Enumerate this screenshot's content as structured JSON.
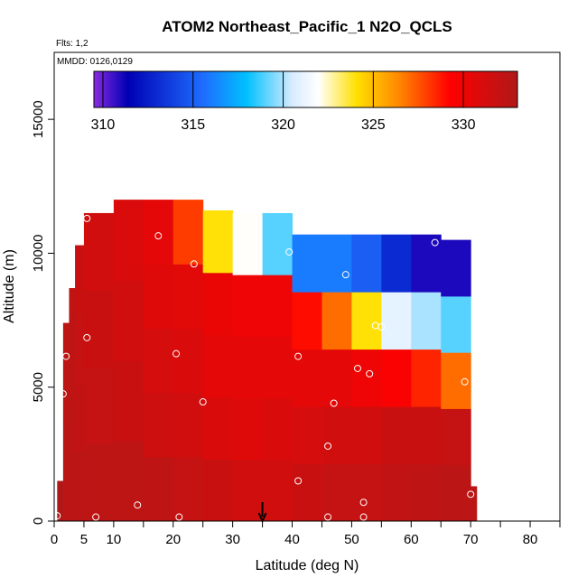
{
  "chart_data": {
    "type": "heatmap",
    "title": "ATOM2 Northeast_Pacific_1 N2O_QCLS",
    "annotations": [
      "Flts: 1,2",
      "MMDD: 0126,0129"
    ],
    "xlabel": "Latitude (deg N)",
    "ylabel": "Altitude (m)",
    "xlim": [
      0,
      85
    ],
    "ylim": [
      0,
      17500
    ],
    "x_ticks": [
      0,
      5,
      10,
      20,
      30,
      40,
      50,
      60,
      70,
      80
    ],
    "y_ticks": [
      0,
      5000,
      10000,
      15000
    ],
    "x_minor_ticks": [
      15,
      25,
      35,
      45,
      55,
      65,
      75,
      85
    ],
    "colorbar": {
      "min": 309.5,
      "max": 333,
      "ticks": [
        310,
        315,
        320,
        325,
        330
      ],
      "stops": [
        "#8a2be2",
        "#0000b4",
        "#1e6eff",
        "#00c0ff",
        "#d8ecff",
        "#ffffff",
        "#ffe000",
        "#ff8800",
        "#ff0000",
        "#b01818"
      ]
    },
    "marker": {
      "x": 35,
      "label": "arrow"
    },
    "grid": false,
    "observations": [
      {
        "x": 0.5,
        "y": 200
      },
      {
        "x": 7,
        "y": 150
      },
      {
        "x": 14,
        "y": 600
      },
      {
        "x": 21,
        "y": 150
      },
      {
        "x": 46,
        "y": 150
      },
      {
        "x": 52,
        "y": 700
      },
      {
        "x": 52,
        "y": 150
      },
      {
        "x": 70,
        "y": 1000
      },
      {
        "x": 41,
        "y": 1500
      },
      {
        "x": 46,
        "y": 2800
      },
      {
        "x": 25,
        "y": 4450
      },
      {
        "x": 47,
        "y": 4400
      },
      {
        "x": 1.5,
        "y": 4750
      },
      {
        "x": 51,
        "y": 5700
      },
      {
        "x": 53,
        "y": 5500
      },
      {
        "x": 69,
        "y": 5200
      },
      {
        "x": 2,
        "y": 6150
      },
      {
        "x": 20.5,
        "y": 6250
      },
      {
        "x": 41,
        "y": 6150
      },
      {
        "x": 5.5,
        "y": 6850
      },
      {
        "x": 54,
        "y": 7300
      },
      {
        "x": 55,
        "y": 7250
      },
      {
        "x": 49,
        "y": 9200
      },
      {
        "x": 23.5,
        "y": 9600
      },
      {
        "x": 39.5,
        "y": 10050
      },
      {
        "x": 17.5,
        "y": 10650
      },
      {
        "x": 4,
        "y": 11300
      },
      {
        "x": 5.5,
        "y": 11300
      },
      {
        "x": 64,
        "y": 10400
      }
    ],
    "profiles": [
      {
        "lat": 0.5,
        "top": 1500,
        "values": [
          333
        ]
      },
      {
        "lat": 1.5,
        "top": 7400,
        "values": [
          332.5,
          332.5,
          332.4,
          332.4
        ]
      },
      {
        "lat": 2.5,
        "top": 8700,
        "values": [
          332.5,
          332.4,
          332.3,
          332.3
        ]
      },
      {
        "lat": 3.5,
        "top": 10300,
        "values": [
          332.5,
          332.2,
          332,
          331.8
        ]
      },
      {
        "lat": 5,
        "top": 11500,
        "values": [
          332.4,
          332,
          331.8,
          331.5
        ]
      },
      {
        "lat": 10,
        "top": 12000,
        "values": [
          332.4,
          331.8,
          331.5,
          331
        ]
      },
      {
        "lat": 15,
        "top": 12000,
        "values": [
          332.3,
          331.6,
          331.2,
          330.8,
          330.5
        ]
      },
      {
        "lat": 20,
        "top": 12000,
        "values": [
          332,
          331.5,
          331,
          330.6,
          328
        ]
      },
      {
        "lat": 25,
        "top": 11600,
        "values": [
          331.8,
          331,
          330.5,
          330.2,
          324
        ]
      },
      {
        "lat": 30,
        "top": 11500,
        "values": [
          331.5,
          330.8,
          330.5,
          330,
          322
        ]
      },
      {
        "lat": 35,
        "top": 11500,
        "values": [
          331.5,
          331,
          330.5,
          330,
          319
        ]
      },
      {
        "lat": 40,
        "top": 10700,
        "values": [
          331.8,
          331.2,
          330.5,
          329,
          316
        ]
      },
      {
        "lat": 45,
        "top": 10700,
        "values": [
          332,
          331.5,
          330.5,
          327,
          316
        ]
      },
      {
        "lat": 50,
        "top": 10700,
        "values": [
          332,
          331.5,
          330,
          324,
          315
        ]
      },
      {
        "lat": 55,
        "top": 10700,
        "values": [
          332.2,
          331.8,
          329.5,
          321,
          313
        ]
      },
      {
        "lat": 60,
        "top": 10700,
        "values": [
          332.3,
          331.8,
          328.5,
          320,
          311
        ]
      },
      {
        "lat": 65,
        "top": 10500,
        "values": [
          332.5,
          332,
          327,
          319,
          311
        ]
      },
      {
        "lat": 70,
        "top": 1300,
        "values": [
          332.5
        ]
      }
    ]
  }
}
